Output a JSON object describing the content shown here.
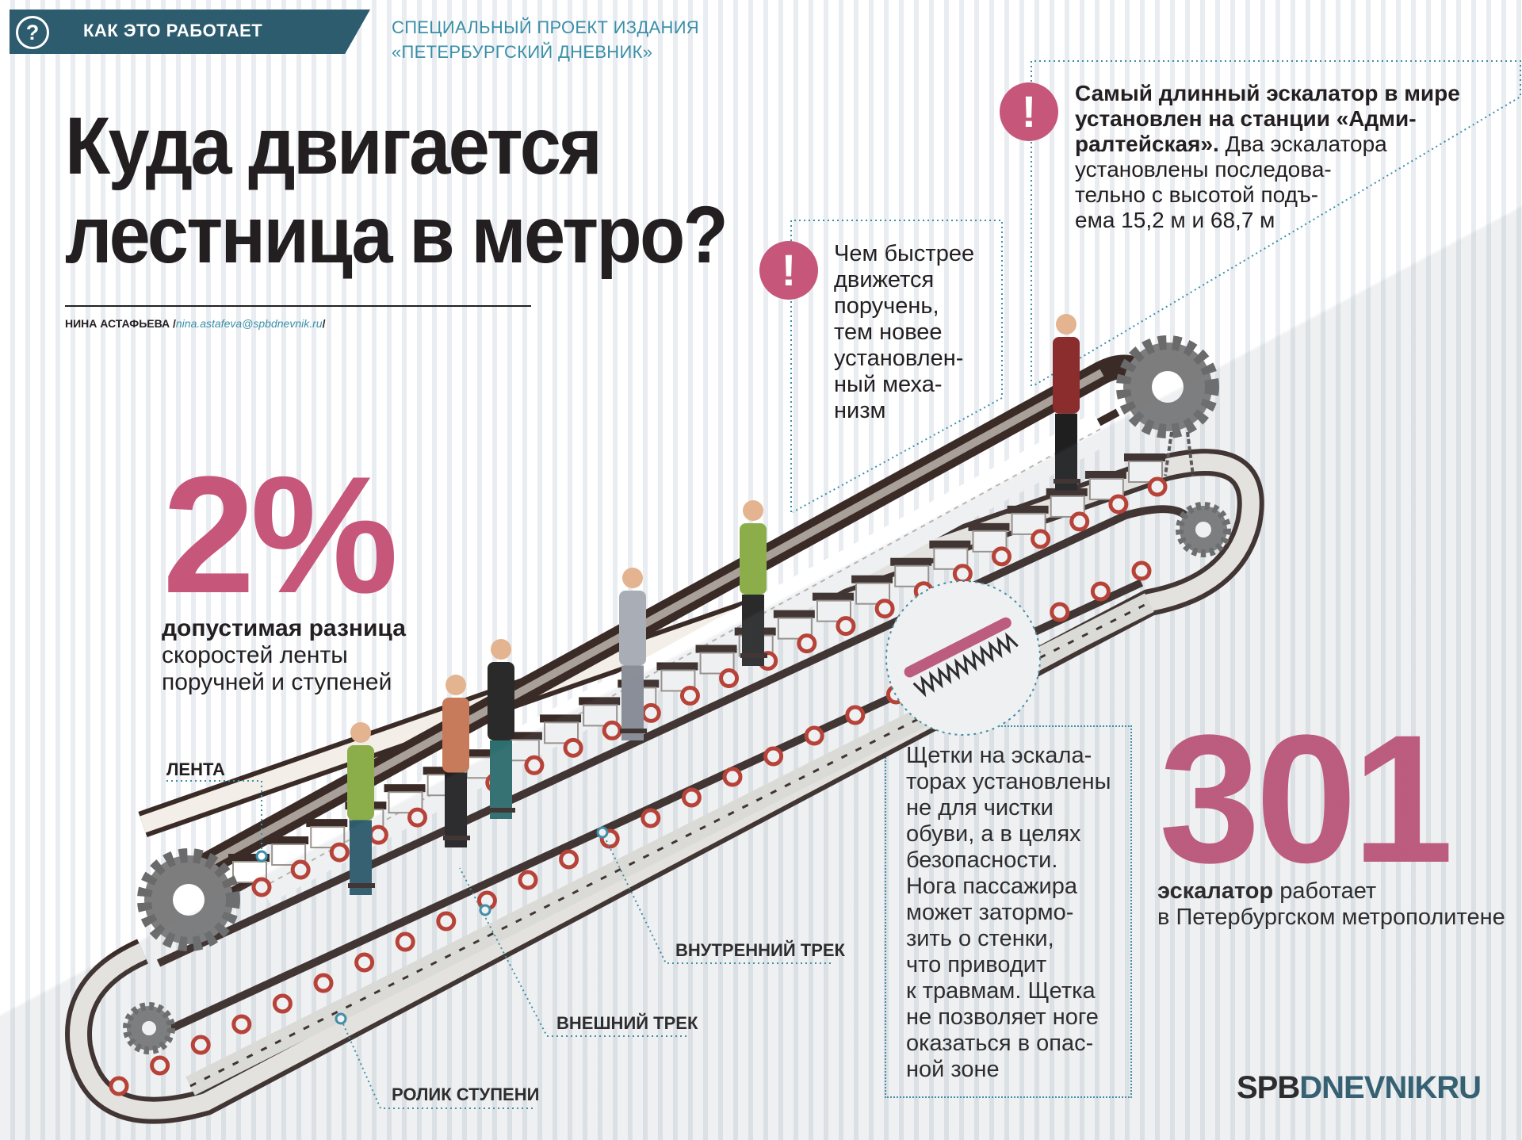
{
  "header": {
    "tab_label": "КАК ЭТО РАБОТАЕТ",
    "special_line1": "СПЕЦИАЛЬНЫЙ ПРОЕКТ ИЗДАНИЯ",
    "special_line2": "«ПЕТЕРБУРГСКИЙ ДНЕВНИК»"
  },
  "title": {
    "line1": "Куда двигается",
    "line2": "лестница в метро?"
  },
  "author": {
    "name": "НИНА АСТАФЬЕВА /",
    "email": "nina.astafeva@spbdnevnik.ru",
    "suffix": "/"
  },
  "fact_speed": {
    "value": "2%",
    "bold": "допустимая разница",
    "line2": "скоростей ленты",
    "line3": "поручней и ступеней"
  },
  "fact_count": {
    "value": "301",
    "bold": "эскалатор",
    "rest": " работает",
    "line2": "в Петербургском метрополитене"
  },
  "notes": {
    "longest": {
      "bold1": "Самый длинный эскалатор в мире",
      "bold2": "установлен на станции «Адми-",
      "bold3": "ралтейская».",
      "rest3": " Два эскалатора",
      "line4": "установлены последова-",
      "line5": "тельно с высотой подъ-",
      "line6": "ема 15,2 м и 68,7 м"
    },
    "handrail": [
      "Чем быстрее",
      "движется",
      "поручень,",
      "тем новее",
      "установлен-",
      "ный меха-",
      "низм"
    ],
    "brushes": [
      "Щетки на эскала-",
      "торах установлены",
      "не для чистки",
      "обуви, а в целях",
      "безопасности.",
      "Нога пассажира",
      "может затормо-",
      "зить о стенки,",
      "что приводит",
      "к травмам. Щетка",
      "не позволяет ноге",
      "оказаться в опас-",
      "ной зоне"
    ],
    "excl_symbol": "!"
  },
  "callouts": {
    "belt": "ЛЕНТА",
    "inner_track": "ВНУТРЕННИЙ ТРЕК",
    "outer_track": "ВНЕШНИЙ ТРЕК",
    "step_roller": "РОЛИК СТУПЕНИ"
  },
  "logo": {
    "part1": "SPB",
    "part2": "DNEVNIK",
    "part3": "RU"
  },
  "colors": {
    "accent": "#c6567a",
    "teal": "#2d5c6e",
    "link": "#3a8fa8",
    "text": "#231f20",
    "gear": "#808080"
  },
  "icons": [
    "question-icon",
    "exclamation-icon",
    "gear-icon"
  ]
}
